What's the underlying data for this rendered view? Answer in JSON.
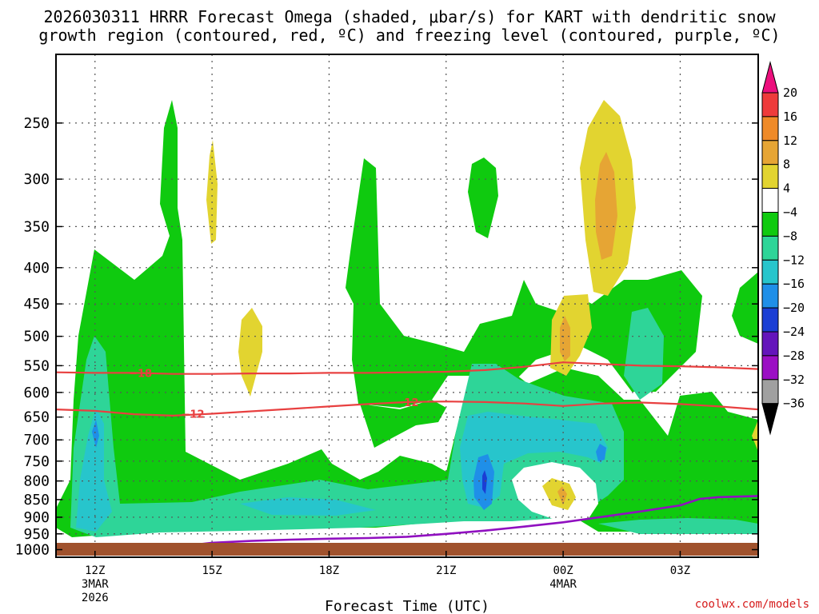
{
  "title_line1": "2026030311 HRRR Forecast Omega (shaded, μbar/s) for KART with dendritic snow",
  "title_line2": "growth region (contoured, red, ºC) and freezing level (contoured, purple, ºC)",
  "credit": "coolwx.com/models",
  "chart_data": {
    "type": "time-height",
    "title": "2026030311 HRRR Forecast Omega (shaded, μbar/s) for KART with dendritic snow growth region (contoured, red, ºC) and freezing level (contoured, purple, ºC)",
    "xlabel": "Forecast Time (UTC)",
    "ylabel": "",
    "xlim_hours_from_12Z": [
      -1,
      17
    ],
    "ylim_hPa": [
      1025,
      200
    ],
    "y_ticks": [
      {
        "value": 250,
        "label": "250"
      },
      {
        "value": 300,
        "label": "300"
      },
      {
        "value": 350,
        "label": "350"
      },
      {
        "value": 400,
        "label": "400"
      },
      {
        "value": 450,
        "label": "450"
      },
      {
        "value": 500,
        "label": "500"
      },
      {
        "value": 550,
        "label": "550"
      },
      {
        "value": 600,
        "label": "600"
      },
      {
        "value": 650,
        "label": "650"
      },
      {
        "value": 700,
        "label": "700"
      },
      {
        "value": 750,
        "label": "750"
      },
      {
        "value": 800,
        "label": "800"
      },
      {
        "value": 850,
        "label": "850"
      },
      {
        "value": 900,
        "label": "900"
      },
      {
        "value": 950,
        "label": "950"
      },
      {
        "value": 1000,
        "label": "1000"
      }
    ],
    "x_ticks": [
      {
        "hour": 0,
        "label": "12Z",
        "sub1": "3MAR",
        "sub2": "2026"
      },
      {
        "hour": 3,
        "label": "15Z",
        "sub1": "",
        "sub2": ""
      },
      {
        "hour": 6,
        "label": "18Z",
        "sub1": "",
        "sub2": ""
      },
      {
        "hour": 9,
        "label": "21Z",
        "sub1": "",
        "sub2": ""
      },
      {
        "hour": 12,
        "label": "00Z",
        "sub1": "4MAR",
        "sub2": ""
      },
      {
        "hour": 15,
        "label": "03Z",
        "sub1": "",
        "sub2": ""
      }
    ],
    "grid": true,
    "colorbar": {
      "labels": [
        "20",
        "16",
        "12",
        "8",
        "4",
        "−4",
        "−8",
        "−12",
        "−16",
        "−20",
        "−24",
        "−28",
        "−32",
        "−36"
      ],
      "colors": [
        "#ec0f7d",
        "#ee3b3b",
        "#ef8a28",
        "#e6a534",
        "#e2d430",
        "#ffffff",
        "#0fca0f",
        "#2ed598",
        "#27c5cc",
        "#1f8fe8",
        "#1b3ed4",
        "#6415bb",
        "#9b0fc4",
        "#a0a0a0",
        "#000000"
      ]
    },
    "contours": [
      {
        "label": "−18",
        "color": "#e84040",
        "hours": [
          -1,
          0,
          1,
          2,
          3,
          4,
          5,
          6,
          7,
          8,
          9,
          10,
          11,
          12,
          13,
          14,
          15,
          16,
          17
        ],
        "pressure_hPa": [
          562,
          563,
          563,
          565,
          565,
          564,
          564,
          563,
          563,
          562,
          561,
          558,
          552,
          544,
          547,
          550,
          551,
          553,
          556
        ]
      },
      {
        "label": "−12",
        "color": "#e84040",
        "hours": [
          -1,
          0,
          1,
          2,
          3,
          4,
          5,
          6,
          7,
          8,
          9,
          10,
          11,
          12,
          13,
          14,
          15,
          16,
          17
        ],
        "pressure_hPa": [
          634,
          637,
          644,
          647,
          643,
          638,
          633,
          628,
          623,
          619,
          618,
          619,
          622,
          627,
          622,
          620,
          623,
          628,
          634
        ]
      },
      {
        "label": "0",
        "color": "#9010c0",
        "hours": [
          -1,
          -0.3,
          0.2,
          0.4,
          0.7,
          1.0,
          1.5,
          2.0,
          2.5,
          3.0,
          4.0,
          5.0,
          6.0,
          7.0,
          8.0,
          9.0,
          10.0,
          11.0,
          12.0,
          13.0,
          14.0,
          15.0,
          15.5,
          16.0,
          17.0
        ],
        "pressure_hPa": [
          1008,
          1005,
          1002,
          998,
          992,
          986,
          991,
          990,
          985,
          978,
          972,
          968,
          965,
          963,
          959,
          950,
          940,
          928,
          915,
          899,
          883,
          866,
          848,
          843,
          840
        ]
      }
    ],
    "omega_regions_note": "shaded omega field: upward motion (green to blue, −4 to −20 μbar/s) in low levels and convective plumes; downward motion (yellow/orange, +4 to +12 μbar/s) near 300 hPa around 00Z"
  }
}
